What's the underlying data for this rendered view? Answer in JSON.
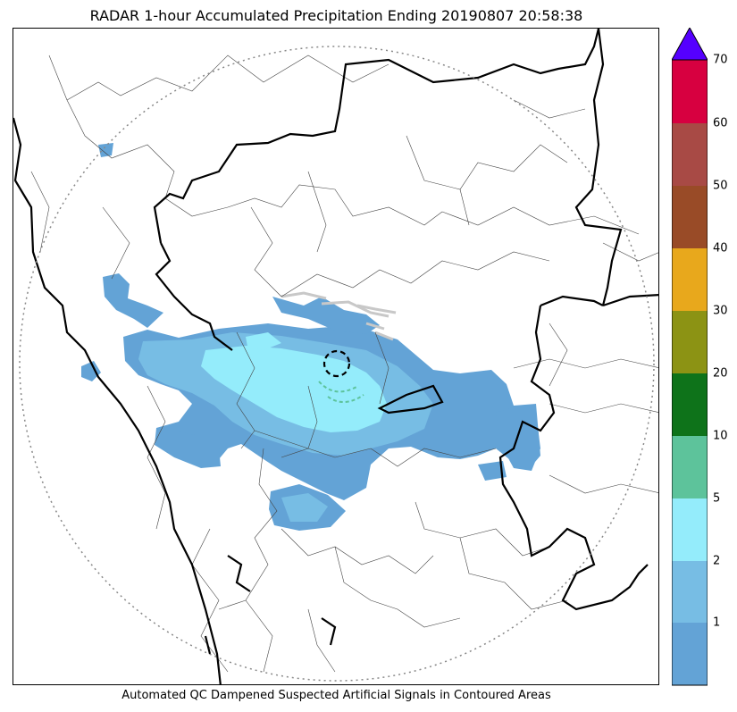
{
  "title": "RADAR 1-hour Accumulated Precipitation Ending 20190807 20:58:38",
  "footer_note": "Automated QC Dampened Suspected Artificial Signals in Contoured Areas",
  "colorbar": {
    "extend": "max",
    "extend_color": "#5500ff",
    "bins": [
      {
        "color": "#63a3d6"
      },
      {
        "color": "#77bde4"
      },
      {
        "color": "#94ecfb"
      },
      {
        "color": "#5dc39b"
      },
      {
        "color": "#0e731a"
      },
      {
        "color": "#8c9314"
      },
      {
        "color": "#e8a81c"
      },
      {
        "color": "#994b27"
      },
      {
        "color": "#a84a45"
      },
      {
        "color": "#d70040"
      }
    ],
    "tick_labels": [
      "1",
      "2",
      "5",
      "10",
      "20",
      "30",
      "40",
      "50",
      "60",
      "70"
    ]
  },
  "map": {
    "background": "#ffffff",
    "coverage_ring_color": "#888888",
    "border_color": "#000000",
    "district_color": "#444444",
    "precip_colors": {
      "light": "#63a3d6",
      "moderate": "#77bde4",
      "heavy": "#94ecfb",
      "qc": "#d3d3d3",
      "qc_green": "#5dc39b"
    }
  }
}
